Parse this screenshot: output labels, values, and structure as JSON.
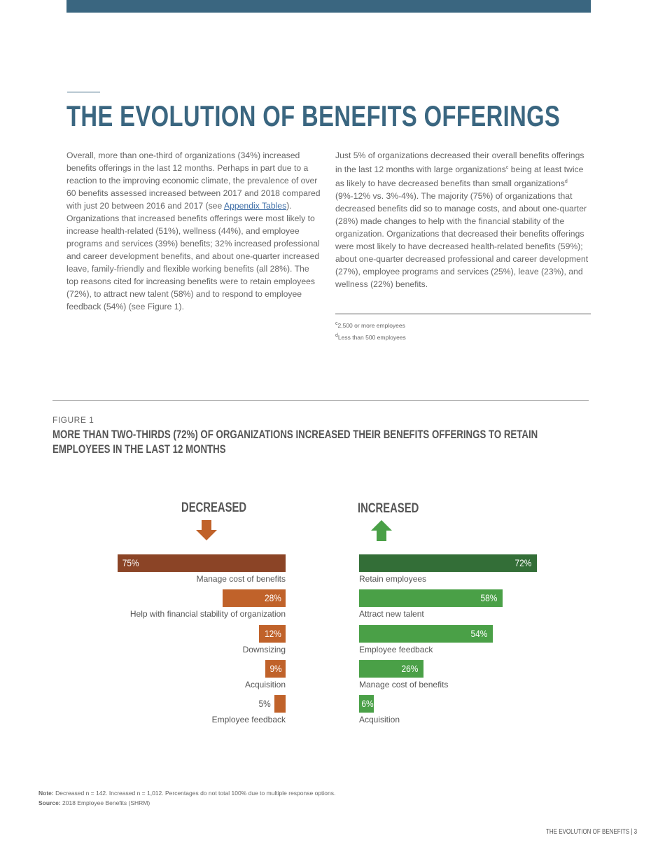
{
  "header": {
    "title": "THE EVOLUTION OF BENEFITS OFFERINGS"
  },
  "body": {
    "left_pre": "Overall, more than one-third of organizations (34%) increased benefits offerings in the last 12 months. Perhaps in part due to a reaction to the improving economic climate, the prevalence of over 60 benefits assessed increased between 2017 and 2018 compared with just 20 between 2016 and 2017 (see ",
    "left_link": "Appendix Tables",
    "left_post": "). Organizations that increased benefits offerings were most likely to increase health-related (51%), wellness (44%), and employee programs and services (39%) benefits; 32% increased professional and career development benefits, and about one-quarter increased leave, family-friendly and flexible working benefits (all 28%). The top reasons cited for increasing benefits were to retain employees (72%), to attract new talent (58%) and to respond to employee feedback (54%) (see Figure 1).",
    "right_a": "Just 5% of organizations decreased their overall benefits offerings in the last 12 months with large organizations",
    "sup_c": "c",
    "right_b": " being at least twice as likely to have decreased benefits than small organizations",
    "sup_d": "d",
    "right_c": " (9%-12% vs. 3%-4%). The majority (75%) of organizations that decreased benefits did so to manage costs, and about one-quarter (28%) made changes to help with the financial stability of the organization. Organizations that decreased their benefits offerings were most likely to have decreased health-related benefits (59%); about one-quarter decreased professional and career development (27%), employee programs and services (25%), leave (23%), and wellness (22%) benefits."
  },
  "footnotes": [
    {
      "mark": "c",
      "text": "2,500 or more employees"
    },
    {
      "mark": "d",
      "text": "Less than 500 employees"
    }
  ],
  "figure": {
    "label": "FIGURE 1",
    "title": "MORE THAN TWO-THIRDS (72%) OF ORGANIZATIONS INCREASED THEIR BENEFITS OFFERINGS TO RETAIN EMPLOYEES IN THE LAST 12 MONTHS"
  },
  "chart_data": {
    "type": "bar",
    "panels": [
      {
        "name": "DECREASED",
        "icon": "arrow-down-icon",
        "categories": [
          "Manage cost of benefits",
          "Help with financial stability of organization",
          "Downsizing",
          "Acquisition",
          "Employee feedback"
        ],
        "values": [
          75,
          28,
          12,
          9,
          5
        ],
        "colors": [
          "#8b4426",
          "#c0622a",
          "#c0622a",
          "#c0622a",
          "#c0622a"
        ]
      },
      {
        "name": "INCREASED",
        "icon": "arrow-up-icon",
        "categories": [
          "Retain employees",
          "Attract new talent",
          "Employee feedback",
          "Manage cost of benefits",
          "Acquisition"
        ],
        "values": [
          72,
          58,
          54,
          26,
          6
        ],
        "colors": [
          "#336e37",
          "#4aa047",
          "#4aa047",
          "#4aa047",
          "#4aa047"
        ]
      }
    ],
    "unit": "%"
  },
  "note": {
    "note_label": "Note:",
    "note_text": " Decreased n = 142. Increased n = 1,012. Percentages do not total 100% due to multiple response options.",
    "source_label": "Source:",
    "source_text": " 2018 Employee Benefits (SHRM)"
  },
  "footer": {
    "text": "THE EVOLUTION OF BENEFITS  |   3"
  }
}
